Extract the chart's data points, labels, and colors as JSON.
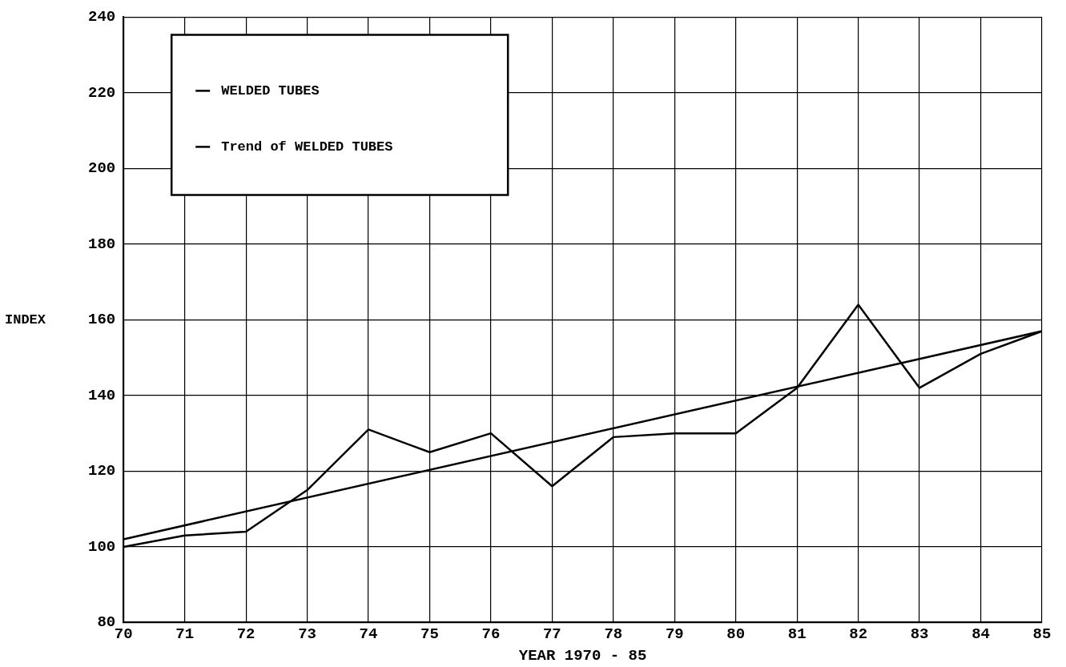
{
  "chart_data": {
    "type": "line",
    "xlabel": "YEAR 1970 - 85",
    "ylabel": "INDEX",
    "x": [
      70,
      71,
      72,
      73,
      74,
      75,
      76,
      77,
      78,
      79,
      80,
      81,
      82,
      83,
      84,
      85
    ],
    "series": [
      {
        "name": "WELDED TUBES",
        "color": "#000000",
        "values": [
          100,
          103,
          104,
          115,
          131,
          125,
          130,
          116,
          129,
          130,
          130,
          142,
          164,
          142,
          151,
          157
        ]
      },
      {
        "name": "Trend of WELDED TUBES",
        "color": "#000000",
        "type": "line",
        "x": [
          70,
          85
        ],
        "values": [
          102,
          157
        ]
      }
    ],
    "xlim": [
      70,
      85
    ],
    "xticks": [
      70,
      71,
      72,
      73,
      74,
      75,
      76,
      77,
      78,
      79,
      80,
      81,
      82,
      83,
      84,
      85
    ],
    "ylim": [
      80,
      240
    ],
    "yticks": [
      80,
      100,
      120,
      140,
      160,
      180,
      200,
      220,
      240
    ],
    "grid": true,
    "legend": "top left"
  }
}
